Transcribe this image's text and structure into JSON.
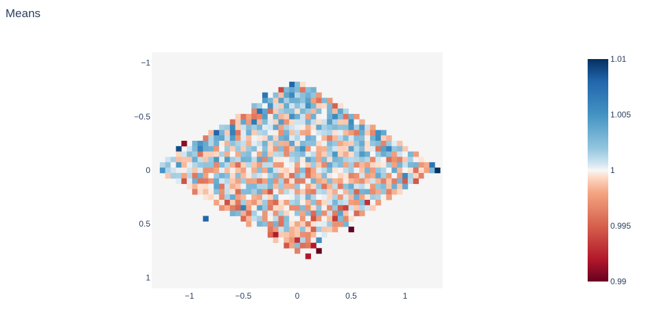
{
  "title": "Means",
  "chart_data": {
    "type": "heatmap",
    "title": "Means",
    "xlabel": "",
    "ylabel": "",
    "xlim": [
      -1.35,
      1.35
    ],
    "ylim": [
      1.1,
      -1.1
    ],
    "y_reversed": true,
    "x_ticks": [
      -1,
      -0.5,
      0,
      0.5,
      1
    ],
    "x_tick_labels": [
      "−1",
      "−0.5",
      "0",
      "0.5",
      "1"
    ],
    "y_ticks": [
      -1,
      -0.5,
      0,
      0.5,
      1
    ],
    "y_tick_labels": [
      "−1",
      "−0.5",
      "0",
      "0.5",
      "1"
    ],
    "plot_background": "#f5f5f5",
    "colorscale": "RdBu",
    "zlim": [
      0.99,
      1.01
    ],
    "colorbar_ticks": [
      1.01,
      1.005,
      1,
      0.995,
      0.99
    ],
    "colorbar_tick_labels": [
      "1.01",
      "1.005",
      "1",
      "0.995",
      "0.99"
    ],
    "cell_size": [
      0.05,
      0.05
    ],
    "data_region": "diamond-shaped region, approx |x|/1.33 + |y|/0.8 ≤ 1, shifted slightly toward negative y",
    "z_min_visible": 0.99,
    "z_max_visible": 1.01,
    "notable_cells": [
      {
        "x": -1.05,
        "y": -0.25,
        "z": 0.991
      },
      {
        "x": -1.1,
        "y": -0.2,
        "z": 1.009
      },
      {
        "x": 1.3,
        "y": 0,
        "z": 1.01
      },
      {
        "x": 1.25,
        "y": -0.05,
        "z": 1.007
      },
      {
        "x": 0.5,
        "y": 0.55,
        "z": 0.99
      },
      {
        "x": 0.2,
        "y": 0.75,
        "z": 0.99
      },
      {
        "x": 0.15,
        "y": 0.7,
        "z": 0.992
      },
      {
        "x": 0.1,
        "y": 0.78,
        "z": 0.992
      },
      {
        "x": -0.85,
        "y": 0.45,
        "z": 1.008
      },
      {
        "x": -0.3,
        "y": -0.7,
        "z": 1.007
      },
      {
        "x": -0.05,
        "y": -0.8,
        "z": 1.008
      },
      {
        "x": -0.75,
        "y": -0.35,
        "z": 1.008
      }
    ]
  }
}
